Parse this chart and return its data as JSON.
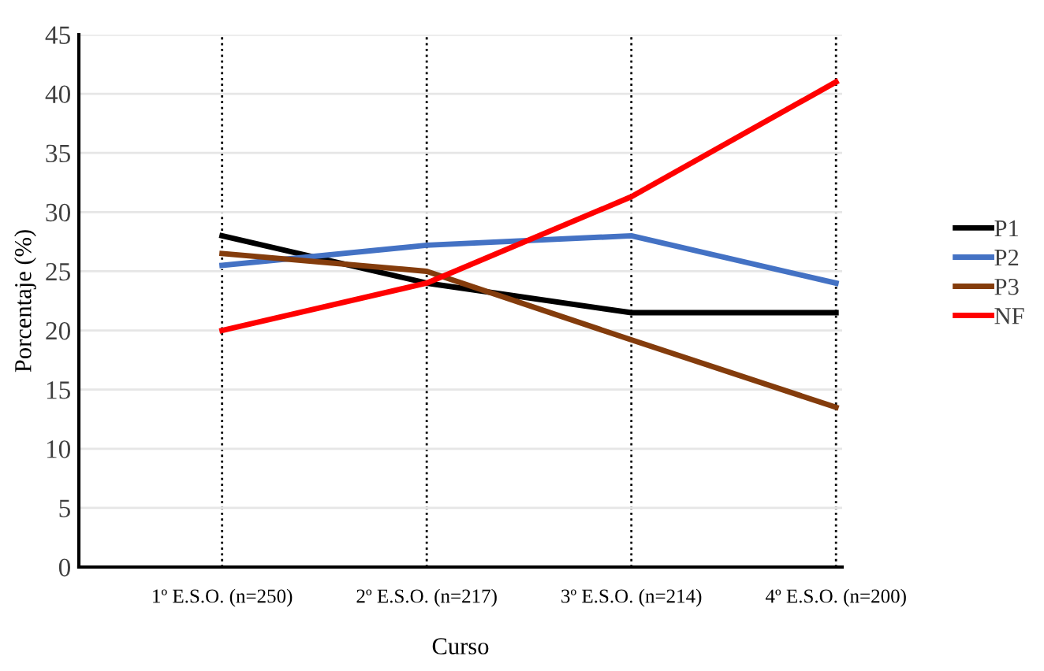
{
  "chart_data": {
    "type": "line",
    "xlabel": "Curso",
    "ylabel": "Porcentaje (%)",
    "categories": [
      "1º E.S.O. (n=250)",
      "2º E.S.O. (n=217)",
      "3º E.S.O. (n=214)",
      "4º E.S.O. (n=200)"
    ],
    "series": [
      {
        "name": "P1",
        "color": "#000000",
        "values": [
          28,
          24,
          21.5,
          21.5
        ]
      },
      {
        "name": "P2",
        "color": "#4472c4",
        "values": [
          25.5,
          27.2,
          28,
          24
        ]
      },
      {
        "name": "P3",
        "color": "#843c0c",
        "values": [
          26.5,
          25,
          19.2,
          13.5
        ]
      },
      {
        "name": "NF",
        "color": "#ff0000",
        "values": [
          20,
          24,
          31.3,
          41
        ]
      }
    ],
    "ylim": [
      0,
      45
    ],
    "yticks": [
      0,
      5,
      10,
      15,
      20,
      25,
      30,
      35,
      40,
      45
    ],
    "grid": true,
    "legend": "right",
    "marker": "none",
    "line_style": "solid"
  }
}
